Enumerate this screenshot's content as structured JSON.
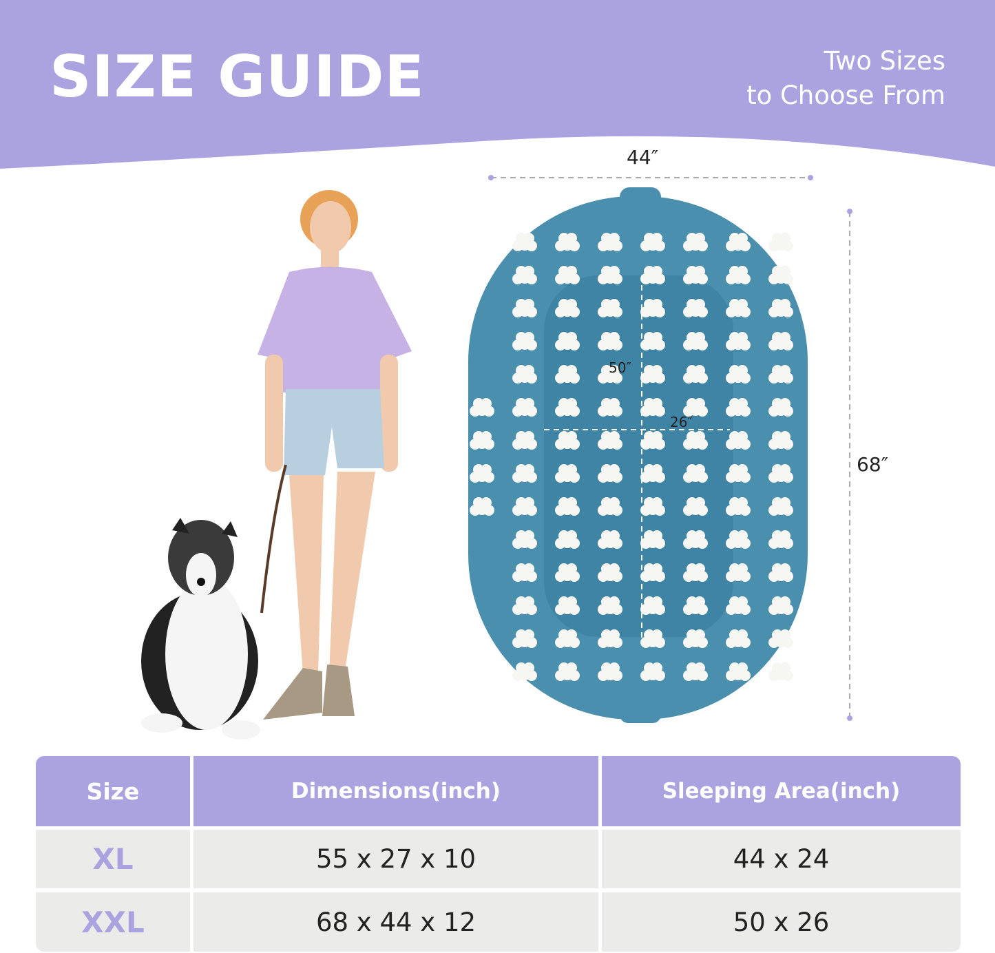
{
  "header": {
    "title": "SIZE GUIDE",
    "subtitle_line1": "Two Sizes",
    "subtitle_line2": "to Choose From"
  },
  "diagram": {
    "outer_width": "44″",
    "outer_length": "68″",
    "inner_length": "50″",
    "inner_width": "26″"
  },
  "table": {
    "headers": [
      "Size",
      "Dimensions(inch)",
      "Sleeping Area(inch)"
    ],
    "rows": [
      {
        "size": "XL",
        "dimensions": "55 x 27 x 10",
        "sleeping_area": "44 x 24"
      },
      {
        "size": "XXL",
        "dimensions": "68 x 44 x 12",
        "sleeping_area": "50 x 26"
      }
    ]
  },
  "colors": {
    "accent": "#aba3df",
    "bed": "#4b8fae",
    "row_bg": "#ebebea"
  }
}
